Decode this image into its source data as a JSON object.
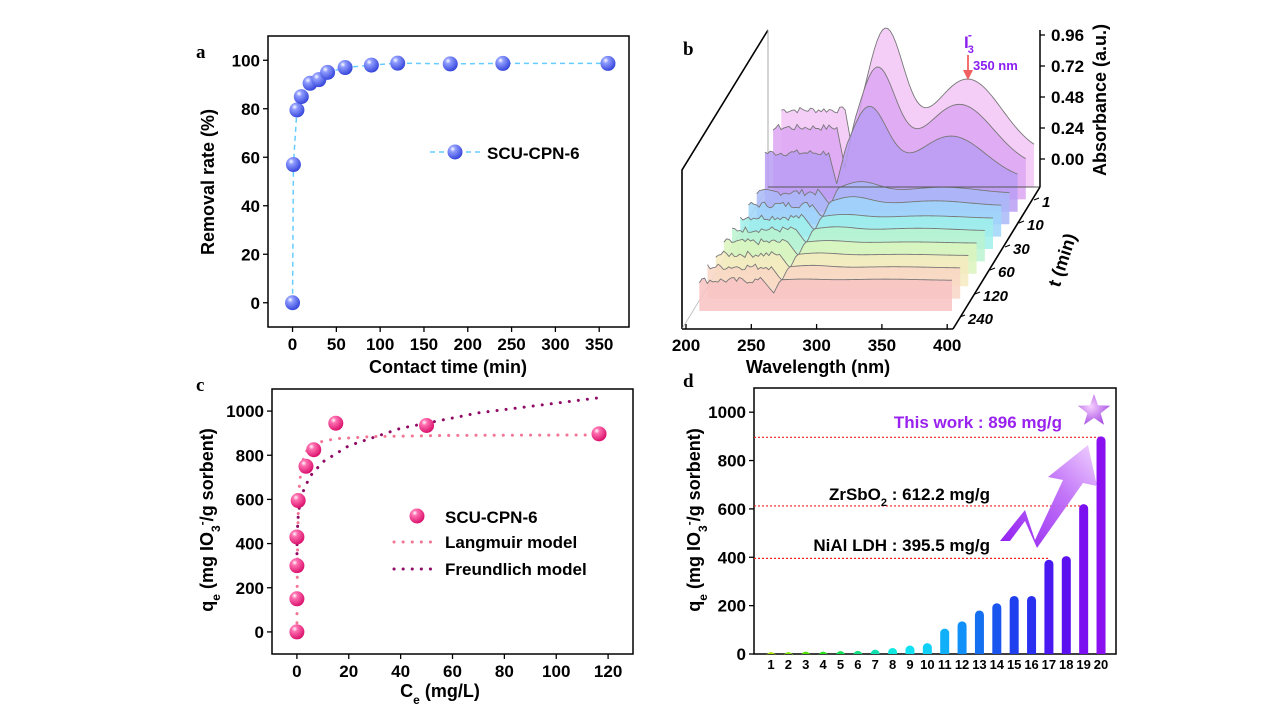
{
  "panels": {
    "a": {
      "label": "a"
    },
    "b": {
      "label": "b"
    },
    "c": {
      "label": "c"
    },
    "d": {
      "label": "d"
    }
  },
  "chart_data": [
    {
      "panel": "a",
      "type": "scatter",
      "connect": "dashed-line",
      "xlabel": "Contact time (min)",
      "ylabel": "Removal rate (%)",
      "xlim": [
        -28,
        384
      ],
      "ylim": [
        -10,
        110
      ],
      "xticks": [
        0,
        50,
        100,
        150,
        200,
        250,
        300,
        350
      ],
      "yticks": [
        0,
        20,
        40,
        60,
        80,
        100
      ],
      "legend_placement": "center-right",
      "colors": {
        "marker": "#4f5ff0",
        "line": "#66ccff"
      },
      "series": [
        {
          "name": "SCU-CPN-6",
          "x": [
            0,
            1,
            5,
            10,
            20,
            30,
            40,
            60,
            90,
            120,
            180,
            240,
            360
          ],
          "y": [
            0,
            57,
            79.5,
            85,
            90.5,
            92,
            95,
            97,
            98,
            98.8,
            98.5,
            98.7,
            98.7
          ]
        }
      ]
    },
    {
      "panel": "b",
      "type": "area",
      "style": "3d-waterfall",
      "xlabel": "Wavelength (nm)",
      "ylabel": "Absorbance (a.u.)",
      "zlabel": "t (min)",
      "xlim": [
        200,
        400
      ],
      "xticks": [
        200,
        250,
        300,
        350,
        400
      ],
      "yticks": [
        "0.00",
        "0.24",
        "0.48",
        "0.72",
        "0.96"
      ],
      "zticks": [
        "1",
        "10",
        "30",
        "60",
        "120",
        "240"
      ],
      "annotation": {
        "species": "I",
        "sub": "3",
        "sup": "-",
        "text": "350 nm",
        "color": "#8a1ff0",
        "arrow_color": "#f06060"
      },
      "series": [
        {
          "plateau": 0.38,
          "peak_288": 0.96,
          "peak_350": 0.6,
          "color": "#f3c6f7"
        },
        {
          "plateau": 0.34,
          "peak_288": 0.76,
          "peak_350": 0.5,
          "color": "#dca6f2"
        },
        {
          "plateau": 0.24,
          "peak_288": 0.56,
          "peak_350": 0.35,
          "color": "#b99cf3"
        },
        {
          "plateau": 0.03,
          "peak_288": 0.09,
          "peak_350": 0.05,
          "color": "#a9b9f8"
        },
        {
          "plateau": 0.03,
          "peak_288": 0.07,
          "peak_350": 0.04,
          "color": "#9fd6fa"
        },
        {
          "plateau": 0.03,
          "peak_288": 0.03,
          "peak_350": 0.02,
          "color": "#9ff0ea"
        },
        {
          "plateau": 0.03,
          "peak_288": 0.03,
          "peak_350": 0.02,
          "color": "#b8f3cf"
        },
        {
          "plateau": 0.03,
          "peak_288": 0.02,
          "peak_350": 0.01,
          "color": "#dcf5bd"
        },
        {
          "plateau": 0.03,
          "peak_288": 0.02,
          "peak_350": 0.01,
          "color": "#f6eac0"
        },
        {
          "plateau": 0.03,
          "peak_288": 0.02,
          "peak_350": 0.01,
          "color": "#f8d6c4"
        },
        {
          "plateau": 0.02,
          "peak_288": 0.01,
          "peak_350": 0.01,
          "color": "#f8c2c2"
        }
      ]
    },
    {
      "panel": "c",
      "type": "scatter",
      "xlabel_parts": [
        {
          "t": "C"
        },
        {
          "t": "e",
          "sub": true
        },
        {
          "t": " (mg/L)"
        }
      ],
      "ylabel_parts": [
        {
          "t": "q"
        },
        {
          "t": "e",
          "sub": true
        },
        {
          "t": " (mg IO"
        },
        {
          "t": "3",
          "sub": true
        },
        {
          "t": "-",
          "sup": true
        },
        {
          "t": "/g sorbent)"
        }
      ],
      "xlim": [
        -9.6,
        129.6
      ],
      "ylim": [
        -100,
        1100
      ],
      "xticks": [
        0,
        20,
        40,
        60,
        80,
        100,
        120
      ],
      "yticks": [
        0,
        200,
        400,
        600,
        800,
        1000
      ],
      "legend_placement": "center-right",
      "series": [
        {
          "name": "SCU-CPN-6",
          "kind": "marker",
          "color": "#ee1177",
          "x": [
            0,
            0,
            0,
            0,
            0.5,
            3.5,
            6.5,
            15,
            50,
            116.5
          ],
          "y": [
            0,
            150,
            300,
            430,
            595,
            750,
            825,
            945,
            935,
            897
          ]
        },
        {
          "name": "Langmuir  model",
          "kind": "dotted",
          "color": "#f27596",
          "x": [
            0,
            0.1,
            0.3,
            0.6,
            1,
            2,
            4,
            8,
            15,
            30,
            60,
            117
          ],
          "y": [
            0,
            206,
            424,
            575,
            671,
            767,
            826,
            858,
            875,
            885,
            890,
            892
          ]
        },
        {
          "name": "Freundlich model",
          "kind": "dotted",
          "color": "#8e0a64",
          "x": [
            0.01,
            0.05,
            0.2,
            0.5,
            1,
            2,
            5,
            10,
            20,
            40,
            70,
            117
          ],
          "y": [
            313,
            387,
            463,
            522,
            571,
            625,
            704,
            770,
            843,
            922,
            992,
            1061
          ]
        }
      ]
    },
    {
      "panel": "d",
      "type": "bar",
      "ylabel_parts": [
        {
          "t": "q"
        },
        {
          "t": "e",
          "sub": true
        },
        {
          "t": " (mg IO"
        },
        {
          "t": "3",
          "sub": true
        },
        {
          "t": "-",
          "sup": true
        },
        {
          "t": "/g sorbent)"
        }
      ],
      "ylim": [
        0,
        1100
      ],
      "yticks": [
        0,
        200,
        400,
        600,
        800,
        1000
      ],
      "categories": [
        "1",
        "2",
        "3",
        "4",
        "5",
        "6",
        "7",
        "8",
        "9",
        "10",
        "11",
        "12",
        "13",
        "14",
        "15",
        "16",
        "17",
        "18",
        "19",
        "20"
      ],
      "values": [
        8,
        8,
        10,
        10,
        12,
        13,
        18,
        25,
        35,
        45,
        105,
        135,
        180,
        210,
        240,
        240,
        390,
        405,
        620,
        900
      ],
      "colors": [
        "#a8e000",
        "#7ee000",
        "#4fe000",
        "#28e020",
        "#10e050",
        "#10e080",
        "#10e0b0",
        "#10e8e0",
        "#10e0f0",
        "#10d0f8",
        "#10b0f8",
        "#1090f8",
        "#1470f0",
        "#1a55f0",
        "#2040f0",
        "#2a30f0",
        "#4a18f0",
        "#5c10f0",
        "#7a10f0",
        "#8a10f0"
      ],
      "reference_lines": {
        "color": "#ee2222",
        "values": [
          896,
          612.2,
          395.5
        ]
      },
      "annotations": [
        {
          "parts": [
            {
              "t": "This work : 896 mg/g"
            }
          ],
          "color": "#9a22ee"
        },
        {
          "parts": [
            {
              "t": "ZrSbO"
            },
            {
              "t": "2",
              "sub": true
            },
            {
              "t": " : 612.2 mg/g"
            }
          ],
          "color": "#000000"
        },
        {
          "parts": [
            {
              "t": "NiAl LDH : 395.5 mg/g"
            }
          ],
          "color": "#000000"
        }
      ],
      "decorations": [
        "star-icon",
        "zigzag-arrow-icon"
      ]
    }
  ]
}
